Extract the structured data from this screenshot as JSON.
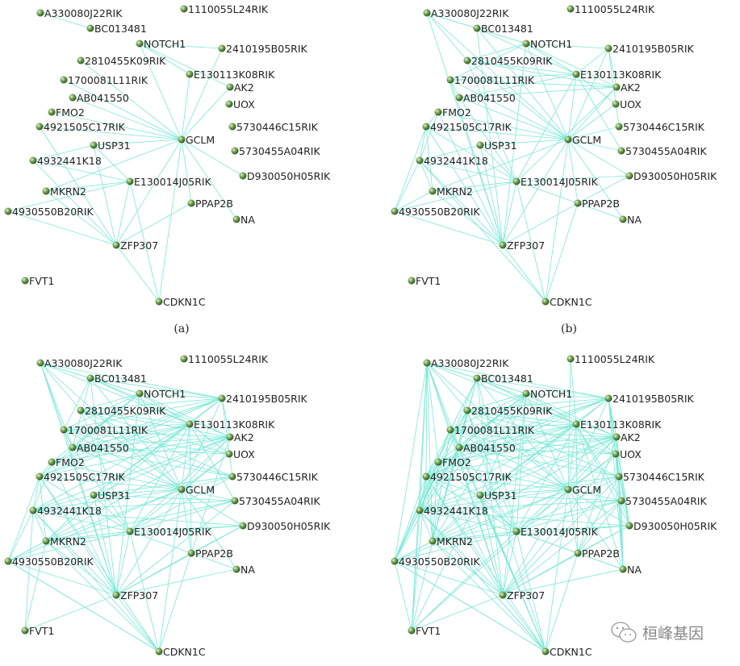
{
  "colors": {
    "edge": "#7ae9d6",
    "node": "#5a8a3c",
    "node_highlight": "#cfe8b8",
    "label": "#222222"
  },
  "nodes": [
    "A330080J22RIK",
    "1110055L24RIK",
    "BC013481",
    "NOTCH1",
    "2410195B05RIK",
    "2810455K09RIK",
    "E130113K08RIK",
    "1700081L11RIK",
    "AK2",
    "AB041550",
    "UOX",
    "FMO2",
    "4921505C17RIK",
    "5730446C15RIK",
    "GCLM",
    "USP31",
    "5730455A04RIK",
    "4932441K18",
    "D930050H05RIK",
    "E130014J05RIK",
    "MKRN2",
    "PPAP2B",
    "4930550B20RIK",
    "NA",
    "ZFP307",
    "FVT1",
    "CDKN1C"
  ],
  "panels": [
    {
      "caption": "(a)",
      "edges": "0-2 3-4 3-6 3-8 3-14 4-14 6-14 8-14 5-14 7-14 9-14 11-14 12-14 15-14 12-24 15-17 15-19 15-24 17-19 17-24 20-14 20-19 20-24 22-19 22-24 19-24 19-26 14-24 14-26 14-21 14-23 14-18 21-24 24-26"
    },
    {
      "caption": "(b)",
      "edges": "0-2 3-4 3-6 3-8 3-14 4-14 6-14 8-14 5-14 7-14 9-14 11-14 12-14 15-14 12-24 15-17 15-19 15-24 17-19 17-24 20-14 20-19 20-24 22-19 22-24 19-24 19-26 14-24 14-26 14-21 14-23 14-18 21-24 24-26 0-3 0-5 0-14 2-3 2-6 2-14 3-5 3-7 4-6 4-8 4-13 5-6 5-8 7-6 7-8 7-9 9-6 9-8 11-17 12-17 12-19 12-22 13-14 16-14 16-6 17-20 17-22 18-19 10-6 20-22 21-19 21-23 11-24 7-24 5-19 9-19 6-19 8-19 2-24 0-24 3-24 26-21 26-17 18-21 10-14 11-12 12-20"
    },
    {
      "caption": "",
      "edges": "0-2 3-4 3-6 3-8 3-14 4-14 6-14 8-14 5-14 7-14 9-14 11-14 12-14 15-14 12-24 15-17 15-19 15-24 17-19 17-24 20-14 20-19 20-24 22-19 22-24 19-24 19-26 14-24 14-26 14-21 14-23 14-18 21-24 24-26 0-3 0-5 0-14 2-3 2-6 2-14 3-5 3-7 4-6 4-8 4-13 5-6 5-8 7-6 7-8 7-9 9-6 9-8 11-17 12-17 12-19 12-22 13-14 16-14 16-6 17-20 17-22 18-19 10-6 20-22 21-19 21-23 11-24 7-24 5-19 9-19 6-19 8-19 2-24 0-24 3-24 26-21 26-17 18-21 10-14 11-12 12-20 0-6 0-4 0-9 0-7 2-4 2-8 2-7 2-9 3-9 3-11 3-12 5-4 5-10 5-13 7-4 7-10 7-13 9-4 9-10 9-13 11-4 11-6 11-8 12-4 12-6 12-8 15-4 15-6 15-8 15-13 15-16 17-6 17-8 17-14 17-16 17-18 19-13 19-16 19-10 20-6 20-8 20-16 20-18 22-14 22-20 22-26 24-18 24-23 24-16 26-20 26-22 25-24 25-17 25-20 21-8 21-6 12-26 20-15"
    },
    {
      "caption": "",
      "edges": "0-2 3-4 3-6 3-8 3-14 4-14 6-14 8-14 5-14 7-14 9-14 11-14 12-14 15-14 12-24 15-17 15-19 15-24 17-19 17-24 20-14 20-19 20-24 22-19 22-24 19-24 19-26 14-24 14-26 14-21 14-23 14-18 21-24 24-26 0-3 0-5 0-14 2-3 2-6 2-14 3-5 3-7 4-6 4-8 4-13 5-6 5-8 7-6 7-8 7-9 9-6 9-8 11-17 12-17 12-19 12-22 13-14 16-14 16-6 17-20 17-22 18-19 10-6 20-22 21-19 21-23 11-24 7-24 5-19 9-19 6-19 8-19 2-24 0-24 3-24 26-21 26-17 18-21 10-14 11-12 12-20 0-6 0-4 0-9 0-7 2-4 2-8 2-7 2-9 3-9 3-11 3-12 5-4 5-10 5-13 7-4 7-10 7-13 9-4 9-10 9-13 11-4 11-6 11-8 12-4 12-6 12-8 15-4 15-6 15-8 15-13 15-16 17-6 17-8 17-14 17-16 17-18 19-13 19-16 19-10 20-6 20-8 20-16 20-18 22-14 22-20 22-26 24-18 24-23 24-16 26-20 26-22 25-24 25-17 25-20 21-8 21-6 12-26 20-15 1-14 1-6 0-17 0-20 0-22 0-25 0-12 0-11 2-12 2-17 2-20 2-19 3-17 3-20 3-19 3-15 5-17 5-20 5-22 5-12 7-17 7-20 7-22 9-17 9-20 9-22 11-20 11-22 11-19 12-15 13-18 13-23 16-23 16-18 10-23 10-18 8-23 8-18 6-23 6-18 4-23 4-18 4-16 4-10 14-25 17-26 19-23 15-26 25-22 25-12 25-19 25-15 26-7 26-5 26-9 24-13 24-10 21-13 21-16"
    }
  ],
  "watermark": {
    "text": "桓峰基因",
    "icon": "wechat-icon"
  }
}
